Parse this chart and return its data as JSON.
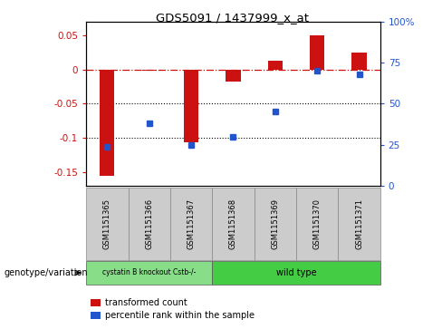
{
  "title": "GDS5091 / 1437999_x_at",
  "samples": [
    "GSM1151365",
    "GSM1151366",
    "GSM1151367",
    "GSM1151368",
    "GSM1151369",
    "GSM1151370",
    "GSM1151371"
  ],
  "bar_values": [
    -0.155,
    -0.002,
    -0.107,
    -0.018,
    0.013,
    0.05,
    0.025
  ],
  "percentile_values": [
    24,
    38,
    25,
    30,
    45,
    70,
    68
  ],
  "bar_color": "#cc1111",
  "dot_color": "#2255cc",
  "ylim_left": [
    -0.17,
    0.07
  ],
  "ylim_right": [
    0,
    100
  ],
  "yticks_left": [
    0.05,
    0.0,
    -0.05,
    -0.1,
    -0.15
  ],
  "yticks_right": [
    100,
    75,
    50,
    25,
    0
  ],
  "hline_y": 0,
  "dotted_lines": [
    -0.05,
    -0.1
  ],
  "group1_label": "cystatin B knockout Cstb-/-",
  "group2_label": "wild type",
  "group1_indices": [
    0,
    1,
    2
  ],
  "group2_indices": [
    3,
    4,
    5,
    6
  ],
  "group1_color": "#88dd88",
  "group2_color": "#44cc44",
  "sample_box_color": "#cccccc",
  "xlabel_genotype": "genotype/variation",
  "legend_bar": "transformed count",
  "legend_dot": "percentile rank within the sample",
  "bar_width": 0.35
}
